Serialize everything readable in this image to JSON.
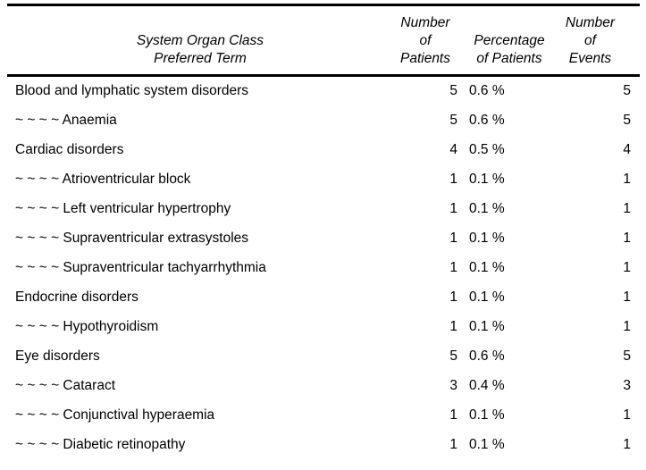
{
  "colors": {
    "background": "#ffffff",
    "text": "#000000",
    "rule": "#000000"
  },
  "table": {
    "header": {
      "term_line1": "System Organ Class",
      "term_line2": "Preferred Term",
      "patients_line1": "Number",
      "patients_line2": "of",
      "patients_line3": "Patients",
      "pct_line1": "Percentage",
      "pct_line2": "of Patients",
      "events_line1": "Number",
      "events_line2": "of",
      "events_line3": "Events"
    },
    "rows": [
      {
        "term": "Blood and lymphatic system disorders",
        "patients": "5",
        "pct": "0.6 %",
        "events": "5"
      },
      {
        "term": "~ ~ ~ ~ Anaemia",
        "patients": "5",
        "pct": "0.6 %",
        "events": "5"
      },
      {
        "term": "Cardiac disorders",
        "patients": "4",
        "pct": "0.5 %",
        "events": "4"
      },
      {
        "term": "~ ~ ~ ~ Atrioventricular block",
        "patients": "1",
        "pct": "0.1 %",
        "events": "1"
      },
      {
        "term": "~ ~ ~ ~ Left ventricular hypertrophy",
        "patients": "1",
        "pct": "0.1 %",
        "events": "1"
      },
      {
        "term": "~ ~ ~ ~ Supraventricular extrasystoles",
        "patients": "1",
        "pct": "0.1 %",
        "events": "1"
      },
      {
        "term": "~ ~ ~ ~ Supraventricular tachyarrhythmia",
        "patients": "1",
        "pct": "0.1 %",
        "events": "1"
      },
      {
        "term": "Endocrine disorders",
        "patients": "1",
        "pct": "0.1 %",
        "events": "1"
      },
      {
        "term": "~ ~ ~ ~ Hypothyroidism",
        "patients": "1",
        "pct": "0.1 %",
        "events": "1"
      },
      {
        "term": "Eye disorders",
        "patients": "5",
        "pct": "0.6 %",
        "events": "5"
      },
      {
        "term": "~ ~ ~ ~ Cataract",
        "patients": "3",
        "pct": "0.4 %",
        "events": "3"
      },
      {
        "term": "~ ~ ~ ~ Conjunctival hyperaemia",
        "patients": "1",
        "pct": "0.1 %",
        "events": "1"
      },
      {
        "term": "~ ~ ~ ~ Diabetic retinopathy",
        "patients": "1",
        "pct": "0.1 %",
        "events": "1"
      }
    ]
  }
}
